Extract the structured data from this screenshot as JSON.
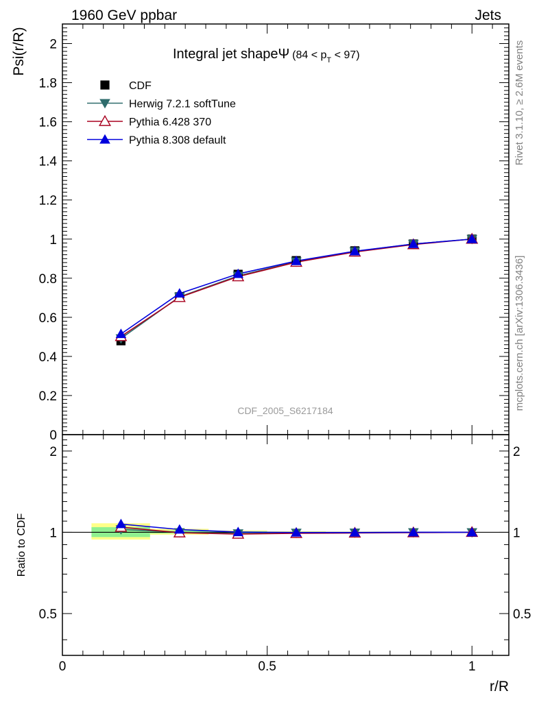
{
  "header": {
    "left": "1960 GeV ppbar",
    "right": "Jets"
  },
  "side": {
    "rivet": "Rivet 3.1.10, ≥ 2.6M events",
    "mcplots": "mcplots.cern.ch [arXiv:1306.3436]"
  },
  "chart_data": {
    "type": "line",
    "title_main": "Integral jet shapeΨ",
    "title_sub": "(84 < p",
    "title_sub_index": "T",
    "title_sub_end": " < 97)",
    "watermark": "CDF_2005_S6217184",
    "xlabel": "r/R",
    "ylabel": "Psi(r/R)",
    "ratio_ylabel": "Ratio to CDF",
    "xlim": [
      0,
      1.09
    ],
    "ylim": [
      0,
      2.1
    ],
    "ratio_ylim": [
      0.35,
      2.3
    ],
    "x_ticklabels": [
      "0",
      "0.5",
      "1"
    ],
    "y_ticklabels": [
      "0",
      "0.2",
      "0.4",
      "0.6",
      "0.8",
      "1",
      "1.2",
      "1.4",
      "1.6",
      "1.8",
      "2"
    ],
    "ratio_ticklabels": [
      "0.5",
      "1",
      "2"
    ],
    "x": [
      0.143,
      0.286,
      0.429,
      0.571,
      0.714,
      0.857,
      1.0
    ],
    "series": [
      {
        "name": "CDF",
        "color": "#000000",
        "marker": "square",
        "values": [
          0.48,
          0.705,
          0.82,
          0.89,
          0.94,
          0.975,
          1.0
        ]
      },
      {
        "name": "Herwig 7.2.1 softTune",
        "color": "#2e6b6b",
        "marker": "triangle-down",
        "values": [
          0.492,
          0.705,
          0.812,
          0.885,
          0.937,
          0.975,
          1.0
        ]
      },
      {
        "name": "Pythia 6.428 370",
        "color": "#a8001e",
        "marker": "triangle-up-open",
        "values": [
          0.502,
          0.702,
          0.808,
          0.882,
          0.934,
          0.972,
          1.0
        ]
      },
      {
        "name": "Pythia 8.308 default",
        "color": "#0000dd",
        "marker": "triangle-up",
        "values": [
          0.515,
          0.722,
          0.822,
          0.888,
          0.938,
          0.975,
          1.0
        ]
      }
    ],
    "ratio_series": [
      {
        "name": "Herwig 7.2.1 softTune",
        "values": [
          1.025,
          1.0,
          0.99,
          0.995,
          0.997,
          1.0,
          1.0
        ]
      },
      {
        "name": "Pythia 6.428 370",
        "values": [
          1.045,
          0.996,
          0.985,
          0.991,
          0.994,
          0.997,
          1.0
        ]
      },
      {
        "name": "Pythia 8.308 default",
        "values": [
          1.073,
          1.024,
          1.002,
          0.998,
          0.998,
          1.0,
          1.0
        ]
      }
    ],
    "uncertainty_bands": [
      {
        "x_range": [
          0.071,
          0.214
        ],
        "stat": [
          0.96,
          1.045
        ],
        "total": [
          0.94,
          1.08
        ]
      },
      {
        "x_range": [
          0.214,
          0.357
        ],
        "stat": [
          0.99,
          1.015
        ],
        "total": [
          0.98,
          1.03
        ]
      },
      {
        "x_range": [
          0.357,
          0.5
        ],
        "stat": [
          0.995,
          1.008
        ],
        "total": [
          0.99,
          1.015
        ]
      },
      {
        "x_range": [
          0.5,
          0.643
        ],
        "stat": [
          0.997,
          1.004
        ],
        "total": [
          0.995,
          1.008
        ]
      },
      {
        "x_range": [
          0.643,
          0.786
        ],
        "stat": [
          0.998,
          1.003
        ],
        "total": [
          0.997,
          1.005
        ]
      },
      {
        "x_range": [
          0.786,
          0.929
        ],
        "stat": [
          0.999,
          1.002
        ],
        "total": [
          0.998,
          1.003
        ]
      },
      {
        "x_range": [
          0.929,
          1.071
        ],
        "stat": [
          0.999,
          1.001
        ],
        "total": [
          0.999,
          1.001
        ]
      }
    ],
    "colors": {
      "band_stat": "#8ff090",
      "band_total": "#ffff88"
    }
  }
}
